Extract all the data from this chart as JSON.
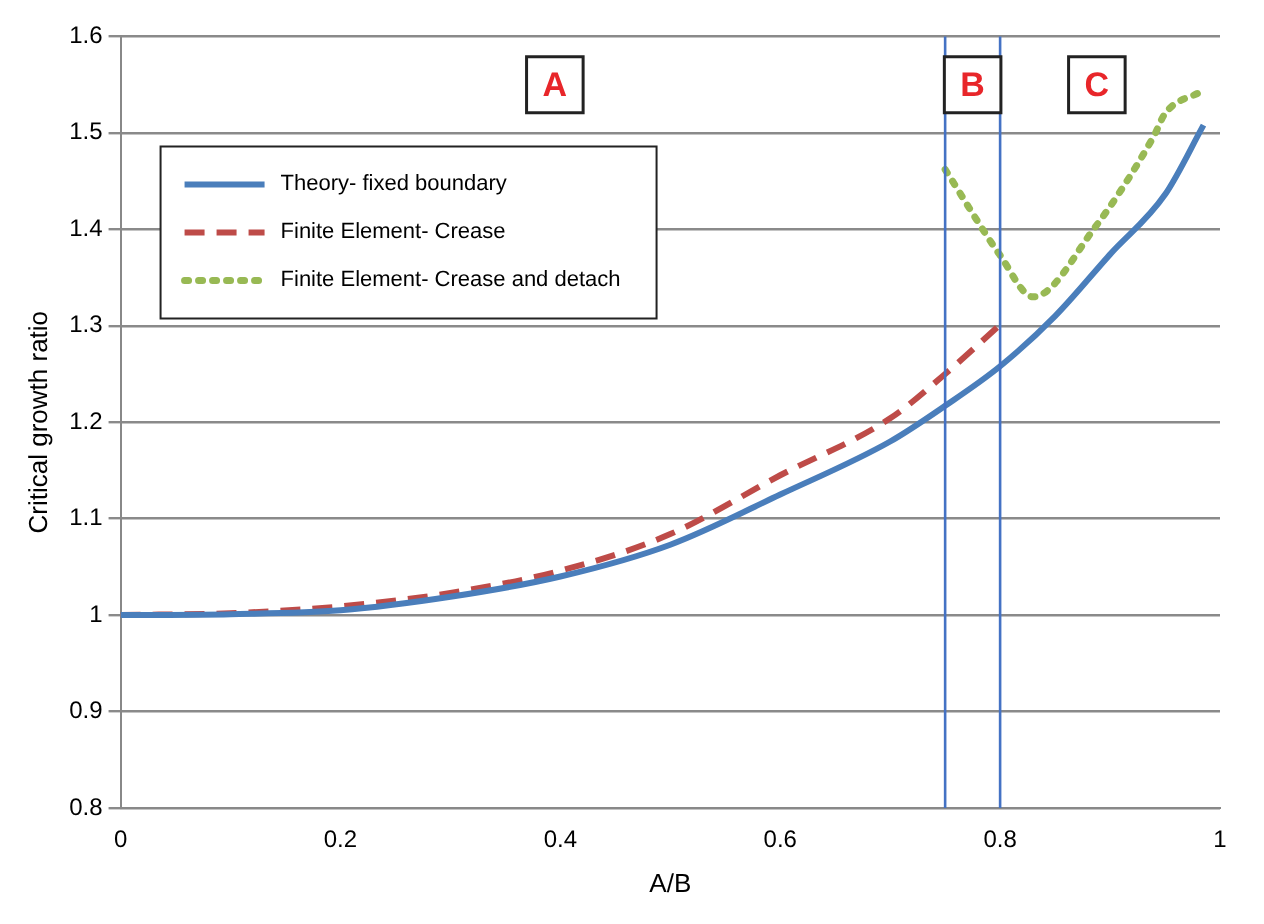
{
  "chart_data": {
    "type": "line",
    "xlabel": "A/B",
    "ylabel": "Critical growth ratio",
    "xlim": [
      0,
      1
    ],
    "xticks": [
      0,
      0.2,
      0.4,
      0.6,
      0.8,
      1
    ],
    "ylim": [
      0.8,
      1.6
    ],
    "yticks": [
      0.8,
      0.9,
      1,
      1.1,
      1.2,
      1.3,
      1.4,
      1.5,
      1.6
    ],
    "grid": "y",
    "legend": "top left",
    "marker": "none",
    "series": [
      {
        "name": "Theory- fixed boundary",
        "color": "#4a7ebb",
        "line_style": "solid",
        "x": [
          0,
          0.1,
          0.2,
          0.3,
          0.4,
          0.5,
          0.6,
          0.7,
          0.75,
          0.8,
          0.85,
          0.9,
          0.95,
          0.985
        ],
        "values": [
          1,
          1.001,
          1.005,
          1.019,
          1.04,
          1.073,
          1.125,
          1.18,
          1.217,
          1.258,
          1.31,
          1.374,
          1.436,
          1.508
        ]
      },
      {
        "name": "Finite Element- Crease",
        "color": "#be4b48",
        "line_style": "dashed",
        "x": [
          0,
          0.1,
          0.2,
          0.3,
          0.4,
          0.5,
          0.6,
          0.7,
          0.75,
          0.8
        ],
        "values": [
          1,
          1.002,
          1.009,
          1.023,
          1.046,
          1.084,
          1.145,
          1.204,
          1.25,
          1.301
        ]
      },
      {
        "name": "Finite Element- Crease and detach",
        "color": "#98b954",
        "line_style": "dotted",
        "x": [
          0.75,
          0.8,
          0.83,
          0.885,
          0.94,
          0.95,
          0.983
        ],
        "values": [
          1.462,
          1.373,
          1.33,
          1.4,
          1.497,
          1.52,
          1.543
        ]
      }
    ],
    "ref_lines": [
      {
        "axis": "x",
        "value": 0.75,
        "color": "#4472c4"
      },
      {
        "axis": "x",
        "value": 0.8,
        "color": "#4472c4"
      }
    ],
    "annotations": [
      {
        "text": "A",
        "x": 0.395,
        "y": 1.55
      },
      {
        "text": "B",
        "x": 0.775,
        "y": 1.55
      },
      {
        "text": "C",
        "x": 0.888,
        "y": 1.55
      }
    ]
  }
}
